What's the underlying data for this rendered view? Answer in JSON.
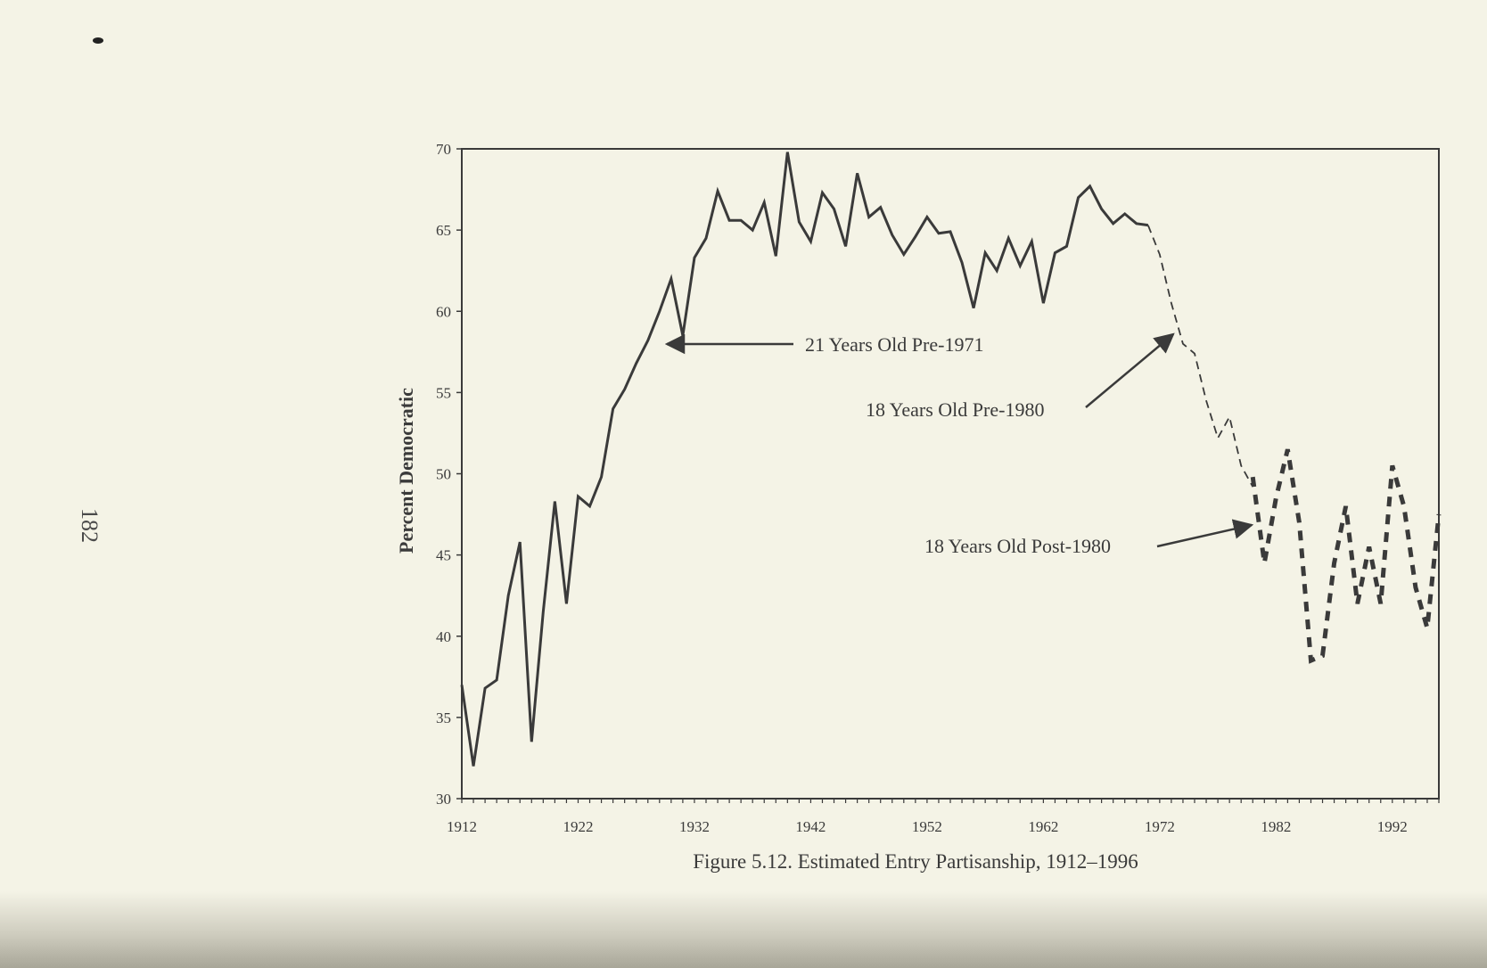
{
  "page": {
    "page_number": "182",
    "caption": "Figure 5.12. Estimated Entry Partisanship, 1912–1996"
  },
  "colors": {
    "paper": "#f4f3e6",
    "ink": "#3a3a3a"
  },
  "chart_data": {
    "type": "line",
    "title": "Figure 5.12. Estimated Entry Partisanship, 1912–1996",
    "xlabel": "",
    "ylabel": "Percent Democratic",
    "xlim": [
      1912,
      1996
    ],
    "ylim": [
      30,
      70
    ],
    "x_ticks": [
      1912,
      1922,
      1932,
      1942,
      1952,
      1962,
      1972,
      1982,
      1992
    ],
    "y_ticks": [
      30,
      35,
      40,
      45,
      50,
      55,
      60,
      65,
      70
    ],
    "grid": false,
    "legend": "none",
    "series": [
      {
        "name": "21 Years Old Pre-1971",
        "style": "solid",
        "x": [
          1912,
          1913,
          1914,
          1915,
          1916,
          1917,
          1918,
          1919,
          1920,
          1921,
          1922,
          1923,
          1924,
          1925,
          1926,
          1927,
          1928,
          1929,
          1930,
          1931,
          1932,
          1933,
          1934,
          1935,
          1936,
          1937,
          1938,
          1939,
          1940,
          1941,
          1942,
          1943,
          1944,
          1945,
          1946,
          1947,
          1948,
          1949,
          1950,
          1951,
          1952,
          1953,
          1954,
          1955,
          1956,
          1957,
          1958,
          1959,
          1960,
          1961,
          1962,
          1963,
          1964,
          1965,
          1966,
          1967,
          1968,
          1969,
          1970,
          1971
        ],
        "y": [
          37,
          32,
          36.8,
          37.3,
          42.5,
          45.8,
          33.5,
          41.5,
          48.3,
          42,
          48.6,
          48,
          49.8,
          54,
          55.2,
          56.8,
          58.2,
          60,
          62,
          58.5,
          63.3,
          64.5,
          67.4,
          65.6,
          65.6,
          65,
          66.7,
          63.4,
          69.8,
          65.5,
          64.3,
          67.3,
          66.3,
          64,
          68.5,
          65.8,
          66.4,
          64.7,
          63.5,
          64.6,
          65.8,
          64.8,
          64.9,
          63,
          60.2,
          63.6,
          62.5,
          64.5,
          62.8,
          64.3,
          60.5,
          63.6,
          64,
          67,
          67.7,
          66.3,
          65.4,
          66,
          65.4,
          65.3
        ]
      },
      {
        "name": "18 Years Old Pre-1980",
        "style": "dashed",
        "x": [
          1971,
          1972,
          1973,
          1974,
          1975,
          1976,
          1977,
          1978,
          1979,
          1980
        ],
        "y": [
          65.3,
          63.5,
          60.5,
          58,
          57.4,
          54.5,
          52.2,
          53.5,
          50.5,
          49.2
        ]
      },
      {
        "name": "18 Years Old Post-1980",
        "style": "heavy-dashed",
        "x": [
          1980,
          1981,
          1982,
          1983,
          1984,
          1985,
          1986,
          1987,
          1988,
          1989,
          1990,
          1991,
          1992,
          1993,
          1994,
          1995,
          1996
        ],
        "y": [
          49.8,
          44.5,
          48.5,
          51.5,
          47,
          38.5,
          38.8,
          44.5,
          48,
          42,
          45.5,
          42,
          50.5,
          48,
          43,
          40.5,
          47.5
        ]
      }
    ],
    "annotations": [
      {
        "text": "21 Years Old Pre-1971",
        "series": 0
      },
      {
        "text": "18 Years Old Pre-1980",
        "series": 1
      },
      {
        "text": "18 Years Old Post-1980",
        "series": 2
      }
    ]
  }
}
